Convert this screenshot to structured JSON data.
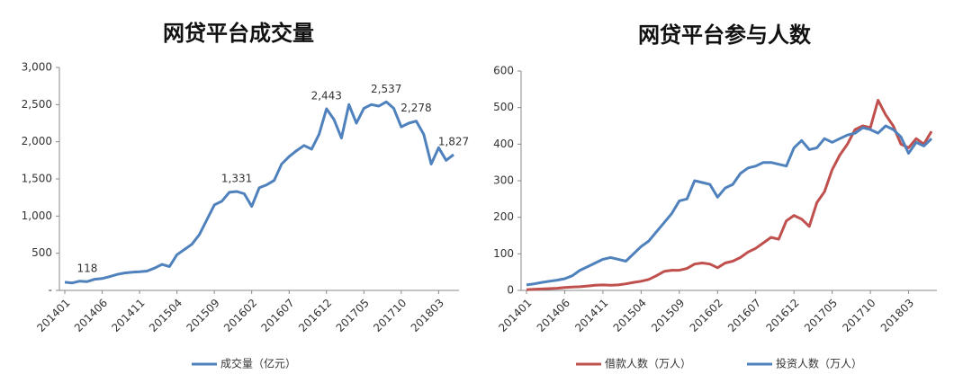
{
  "chart_data": [
    {
      "type": "line",
      "title": "网贷平台成交量",
      "categories": [
        "201401",
        null,
        null,
        null,
        null,
        "201406",
        null,
        null,
        null,
        null,
        "201411",
        null,
        null,
        null,
        null,
        "201504",
        null,
        null,
        null,
        null,
        "201509",
        null,
        null,
        null,
        null,
        "201602",
        null,
        null,
        null,
        null,
        "201607",
        null,
        null,
        null,
        null,
        "201612",
        null,
        null,
        null,
        null,
        "201705",
        null,
        null,
        null,
        null,
        "201710",
        null,
        null,
        null,
        null,
        "201803",
        null,
        null
      ],
      "series": [
        {
          "name": "成交量（亿元）",
          "color": "#4f81bd",
          "values": [
            110,
            100,
            125,
            118,
            150,
            160,
            185,
            215,
            235,
            245,
            250,
            260,
            300,
            350,
            320,
            480,
            550,
            620,
            750,
            950,
            1150,
            1200,
            1320,
            1331,
            1300,
            1130,
            1380,
            1420,
            1480,
            1700,
            1800,
            1880,
            1950,
            1900,
            2100,
            2443,
            2300,
            2050,
            2500,
            2250,
            2450,
            2500,
            2480,
            2537,
            2450,
            2200,
            2250,
            2278,
            2100,
            1700,
            1920,
            1750,
            1827
          ],
          "value_labels": [
            null,
            null,
            null,
            "118",
            null,
            null,
            null,
            null,
            null,
            null,
            null,
            null,
            null,
            null,
            null,
            null,
            null,
            null,
            null,
            null,
            null,
            null,
            null,
            "1,331",
            null,
            null,
            null,
            null,
            null,
            null,
            null,
            null,
            null,
            null,
            null,
            "2,443",
            null,
            null,
            null,
            null,
            null,
            null,
            null,
            "2,537",
            null,
            null,
            null,
            "2,278",
            null,
            null,
            null,
            null,
            "1,827"
          ]
        }
      ],
      "ylim": [
        0,
        3000
      ],
      "yticks": [
        {
          "value": 0,
          "label": "-"
        },
        500,
        {
          "value": 1000,
          "label": "1,000"
        },
        {
          "value": 1500,
          "label": "1,500"
        },
        {
          "value": 2000,
          "label": "2,000"
        },
        {
          "value": 2500,
          "label": "2,500"
        },
        {
          "value": 3000,
          "label": "3,000"
        }
      ],
      "legend": "bottom"
    },
    {
      "type": "line",
      "title": "网贷平台参与人数",
      "categories": [
        "201401",
        null,
        null,
        null,
        null,
        "201406",
        null,
        null,
        null,
        null,
        "201411",
        null,
        null,
        null,
        null,
        "201504",
        null,
        null,
        null,
        null,
        "201509",
        null,
        null,
        null,
        null,
        "201602",
        null,
        null,
        null,
        null,
        "201607",
        null,
        null,
        null,
        null,
        "201612",
        null,
        null,
        null,
        null,
        "201705",
        null,
        null,
        null,
        null,
        "201710",
        null,
        null,
        null,
        null,
        "201803",
        null,
        null,
        null
      ],
      "series": [
        {
          "name": "借款人数（万人）",
          "color": "#c0504d",
          "values": [
            2,
            3,
            4,
            5,
            6,
            8,
            9,
            10,
            12,
            14,
            15,
            14,
            15,
            18,
            22,
            25,
            30,
            40,
            52,
            55,
            55,
            60,
            72,
            75,
            72,
            62,
            75,
            80,
            90,
            105,
            115,
            130,
            145,
            140,
            190,
            205,
            195,
            175,
            240,
            270,
            330,
            370,
            400,
            440,
            450,
            445,
            520,
            480,
            450,
            400,
            390,
            415,
            400,
            435
          ]
        },
        {
          "name": "投资人数（万人）",
          "color": "#4f81bd",
          "values": [
            15,
            18,
            22,
            25,
            28,
            32,
            40,
            55,
            65,
            75,
            85,
            90,
            85,
            80,
            100,
            120,
            135,
            160,
            185,
            210,
            245,
            250,
            300,
            295,
            290,
            255,
            280,
            290,
            320,
            335,
            340,
            350,
            350,
            345,
            340,
            390,
            410,
            385,
            390,
            415,
            405,
            415,
            425,
            430,
            445,
            440,
            430,
            450,
            440,
            420,
            375,
            405,
            395,
            415
          ]
        }
      ],
      "ylim": [
        0,
        600
      ],
      "yticks": [
        0,
        100,
        200,
        300,
        400,
        500,
        600
      ],
      "legend": "bottom"
    }
  ]
}
